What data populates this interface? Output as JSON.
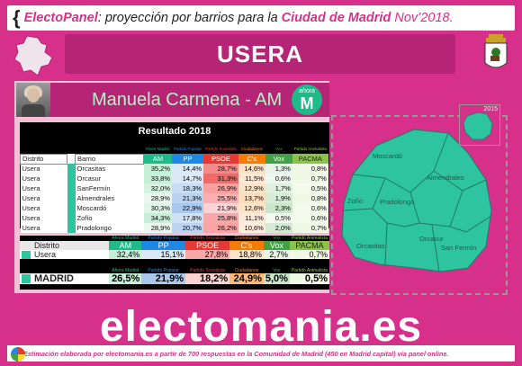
{
  "header": {
    "brand": "ElectoPanel",
    "text_mid": ": proyección por barrios para la ",
    "city": "Ciudad de Madrid",
    "date": " Nov’2018."
  },
  "district_title": "USERA",
  "candidate": {
    "name": "Manuela Carmena - AM",
    "party_small": "ahora",
    "party_letter": "M"
  },
  "results": {
    "title": "Resultado 2018",
    "header_small": [
      "Ahora Madrid",
      "Partido Popular",
      "Partido Socialista",
      "Ciudadanos",
      "Vox",
      "Partido Animalista"
    ],
    "header_cols": [
      "Distrito",
      "Barrio",
      "AM",
      "PP",
      "PSOE",
      "C's",
      "Vox",
      "PACMA"
    ],
    "rows": [
      {
        "distrito": "Usera",
        "barrio": "Orcasitas",
        "am": "35,2%",
        "pp": "14,4%",
        "psoe": "28,7%",
        "cs": "14,6%",
        "vox": "1,3%",
        "pacma": "0,8%"
      },
      {
        "distrito": "Usera",
        "barrio": "Orcasur",
        "am": "33,8%",
        "pp": "14,7%",
        "psoe": "31,3%",
        "cs": "11,5%",
        "vox": "0,6%",
        "pacma": "0,7%"
      },
      {
        "distrito": "Usera",
        "barrio": "SanFermín",
        "am": "32,0%",
        "pp": "18,3%",
        "psoe": "26,9%",
        "cs": "12,9%",
        "vox": "1,7%",
        "pacma": "0,5%"
      },
      {
        "distrito": "Usera",
        "barrio": "Almendrales",
        "am": "28,9%",
        "pp": "21,3%",
        "psoe": "25,5%",
        "cs": "13,7%",
        "vox": "1,9%",
        "pacma": "0,8%"
      },
      {
        "distrito": "Usera",
        "barrio": "Moscardó",
        "am": "30,3%",
        "pp": "22,9%",
        "psoe": "21,9%",
        "cs": "12,6%",
        "vox": "2,3%",
        "pacma": "0,6%"
      },
      {
        "distrito": "Usera",
        "barrio": "Zofío",
        "am": "34,3%",
        "pp": "17,8%",
        "psoe": "25,8%",
        "cs": "11,1%",
        "vox": "0,5%",
        "pacma": "0,6%"
      },
      {
        "distrito": "Usera",
        "barrio": "Pradolongo",
        "am": "28,9%",
        "pp": "20,7%",
        "psoe": "26,2%",
        "cs": "10,6%",
        "vox": "2,0%",
        "pacma": "0,7%"
      }
    ]
  },
  "summary": {
    "header_small": [
      "Ahora Madrid",
      "Partido Popular",
      "Partido Socialista",
      "Ciudadanos",
      "Vox",
      "Partido Animalista"
    ],
    "header_cols": [
      "Distrito",
      "AM",
      "PP",
      "PSOE",
      "C's",
      "Vox",
      "PACMA"
    ],
    "district_row": {
      "name": "Usera",
      "am": "32,4%",
      "pp": "15,1%",
      "psoe": "27,8%",
      "cs": "18,8%",
      "vox": "2,7%",
      "pacma": "0,7%"
    },
    "madrid_small": [
      "Ahora Madrid",
      "Partido Popular",
      "Partido Socialista",
      "Ciudadanos",
      "Vox",
      "Partido Animalista"
    ],
    "madrid_row": {
      "name": "MADRID",
      "am": "26,5%",
      "pp": "21,9%",
      "psoe": "18,2%",
      "cs": "24,9%",
      "vox": "5,0%",
      "pacma": "0,5%"
    }
  },
  "map": {
    "inset_year": "2015",
    "labels": [
      "Moscardó",
      "Almendrales",
      "Zofío",
      "Pradolongo",
      "Orcasur",
      "Orcasitas",
      "San Fermín"
    ]
  },
  "brand": "electomania.es",
  "footer": "Estimación elaborada por electomania.es a partir de 700 respuestas en la Comunidad de Madrid (450 en Madrid capital) vía panel online.",
  "colors": {
    "am": "#1dbb8a",
    "pp": "#1e88e5",
    "psoe": "#e53935",
    "cs": "#f57c00",
    "vox": "#43a047",
    "pacma": "#8bc34a",
    "background": "#d6308a"
  }
}
